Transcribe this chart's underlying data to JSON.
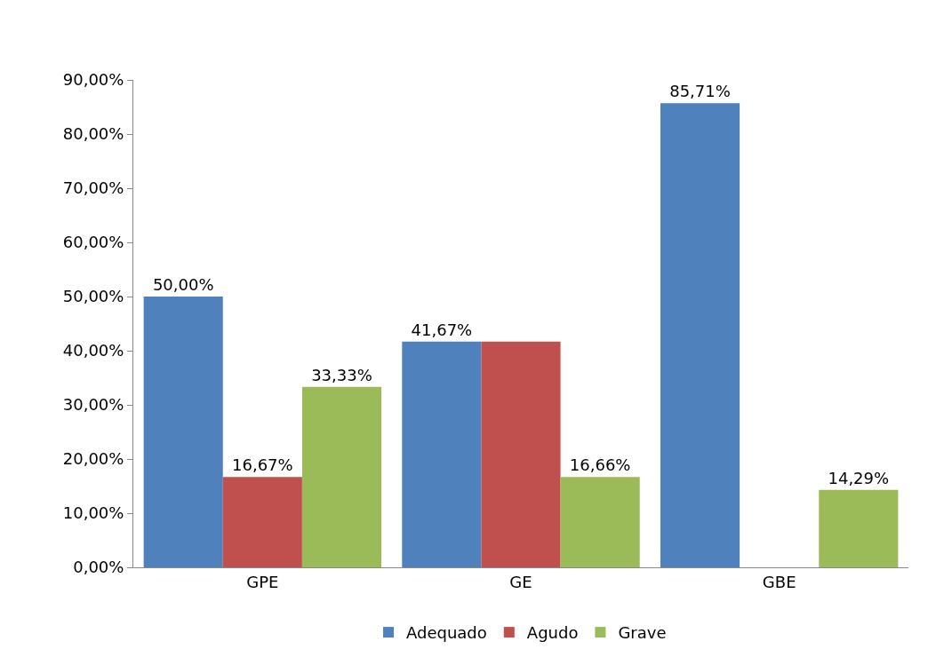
{
  "chart_data": {
    "type": "bar",
    "categories": [
      "GPE",
      "GE",
      "GBE"
    ],
    "series": [
      {
        "name": "Adequado",
        "color": "#4f81bd",
        "values": [
          50,
          41.67,
          85.71
        ],
        "value_labels": [
          "50,00%",
          "41,67%",
          "85,71%"
        ]
      },
      {
        "name": "Agudo",
        "color": "#c0504d",
        "values": [
          16.67,
          41.67,
          null
        ],
        "value_labels": [
          "16,67%",
          null,
          null
        ]
      },
      {
        "name": "Grave",
        "color": "#9bbb59",
        "values": [
          33.33,
          16.66,
          14.29
        ],
        "value_labels": [
          "33,33%",
          "16,66%",
          "14,29%"
        ]
      }
    ],
    "ylim": [
      0,
      90
    ],
    "yticks": [
      {
        "value": 0,
        "label": "0,00%"
      },
      {
        "value": 10,
        "label": "10,00%"
      },
      {
        "value": 20,
        "label": "20,00%"
      },
      {
        "value": 30,
        "label": "30,00%"
      },
      {
        "value": 40,
        "label": "40,00%"
      },
      {
        "value": 50,
        "label": "50,00%"
      },
      {
        "value": 60,
        "label": "60,00%"
      },
      {
        "value": 70,
        "label": "70,00%"
      },
      {
        "value": 80,
        "label": "80,00%"
      },
      {
        "value": 90,
        "label": "90,00%"
      }
    ],
    "grid": false,
    "legend": "bottom"
  }
}
